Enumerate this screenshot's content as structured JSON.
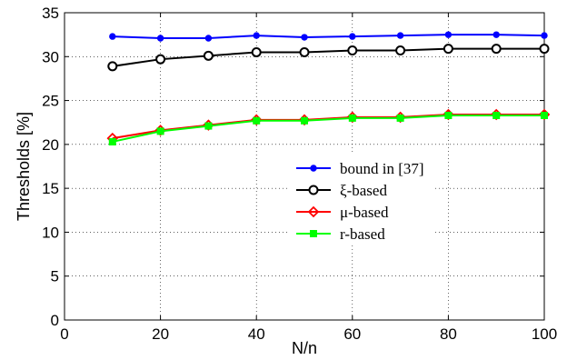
{
  "chart_data": {
    "type": "line",
    "xlabel": "N/n",
    "ylabel": "Thresholds [%]",
    "xlim": [
      0,
      100
    ],
    "ylim": [
      0,
      35
    ],
    "xticks": [
      0,
      20,
      40,
      60,
      80,
      100
    ],
    "yticks": [
      0,
      5,
      10,
      15,
      20,
      25,
      30,
      35
    ],
    "grid": true,
    "legend_position": "center-right",
    "x": [
      10,
      20,
      30,
      40,
      50,
      60,
      70,
      80,
      90,
      100
    ],
    "series": [
      {
        "name": "bound in [37]",
        "color": "#0000ff",
        "marker": "filled-circle",
        "values": [
          32.3,
          32.1,
          32.1,
          32.4,
          32.2,
          32.3,
          32.4,
          32.5,
          32.5,
          32.4
        ]
      },
      {
        "name": "ξ-based",
        "color": "#000000",
        "marker": "open-circle",
        "values": [
          28.9,
          29.7,
          30.1,
          30.5,
          30.5,
          30.7,
          30.7,
          30.9,
          30.9,
          30.9
        ]
      },
      {
        "name": "μ-based",
        "color": "#ff0000",
        "marker": "open-diamond",
        "values": [
          20.7,
          21.6,
          22.2,
          22.8,
          22.8,
          23.1,
          23.1,
          23.4,
          23.4,
          23.4
        ]
      },
      {
        "name": "r-based",
        "color": "#00ff00",
        "marker": "filled-square",
        "values": [
          20.3,
          21.5,
          22.1,
          22.7,
          22.7,
          23.0,
          23.0,
          23.3,
          23.3,
          23.3
        ]
      }
    ]
  }
}
